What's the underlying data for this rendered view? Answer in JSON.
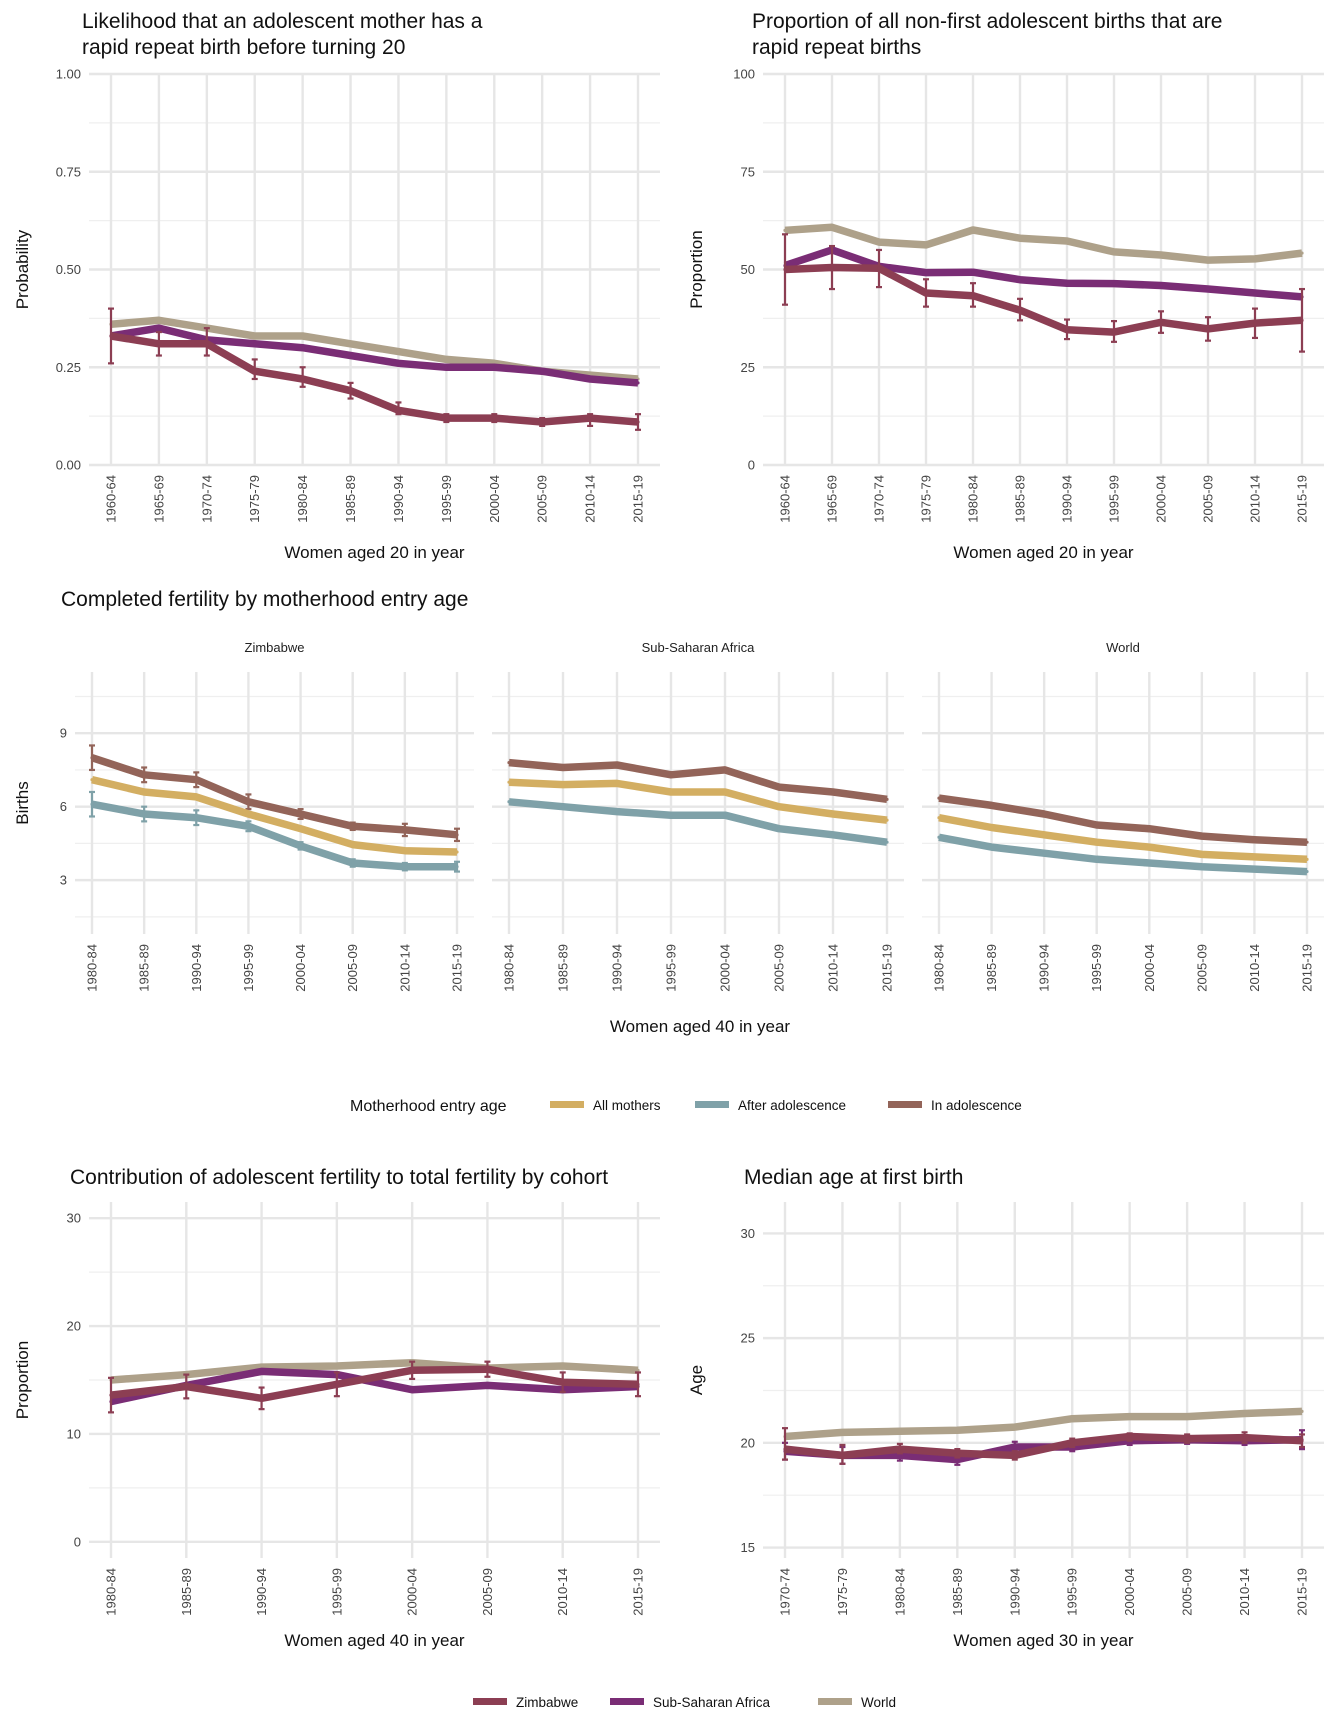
{
  "colors": {
    "zimbabwe": "#8c3e53",
    "ssa": "#7a2d75",
    "world": "#aea18a",
    "all_mothers": "#d3ae62",
    "after_adolescence": "#7fa1a8",
    "in_adolescence": "#936459"
  },
  "legend_fertility": {
    "title": "Motherhood entry age",
    "items": [
      {
        "key": "all_mothers",
        "label": "All mothers"
      },
      {
        "key": "after_adolescence",
        "label": "After adolescence"
      },
      {
        "key": "in_adolescence",
        "label": "In adolescence"
      }
    ]
  },
  "legend_region": {
    "items": [
      {
        "key": "zimbabwe",
        "label": "Zimbabwe"
      },
      {
        "key": "ssa",
        "label": "Sub-Saharan Africa"
      },
      {
        "key": "world",
        "label": "World"
      }
    ]
  },
  "chart_data": [
    {
      "id": "rapid_repeat_likelihood",
      "type": "line",
      "title": [
        "Likelihood that an adolescent mother has a",
        "rapid repeat birth before turning 20"
      ],
      "xlabel": "Women aged 20 in year",
      "ylabel": "Probability",
      "ylim": [
        0,
        1
      ],
      "yticks": [
        "0.00",
        "0.25",
        "0.50",
        "0.75",
        "1.00"
      ],
      "ytick_values": [
        0,
        0.25,
        0.5,
        0.75,
        1.0
      ],
      "categories": [
        "1960-64",
        "1965-69",
        "1970-74",
        "1975-79",
        "1980-84",
        "1985-89",
        "1990-94",
        "1995-99",
        "2000-04",
        "2005-09",
        "2010-14",
        "2015-19"
      ],
      "series": [
        {
          "name": "World",
          "key": "world",
          "values": [
            0.36,
            0.37,
            0.35,
            0.33,
            0.33,
            0.31,
            0.29,
            0.27,
            0.26,
            0.24,
            0.23,
            0.22
          ]
        },
        {
          "name": "Sub-Saharan Africa",
          "key": "ssa",
          "values": [
            0.33,
            0.35,
            0.32,
            0.31,
            0.3,
            0.28,
            0.26,
            0.25,
            0.25,
            0.24,
            0.22,
            0.21
          ]
        },
        {
          "name": "Zimbabwe",
          "key": "zimbabwe",
          "values": [
            0.33,
            0.31,
            0.31,
            0.24,
            0.22,
            0.19,
            0.14,
            0.12,
            0.12,
            0.11,
            0.12,
            0.11
          ],
          "errors": [
            [
              0.26,
              0.4
            ],
            [
              0.28,
              0.34
            ],
            [
              0.28,
              0.35
            ],
            [
              0.22,
              0.27
            ],
            [
              0.2,
              0.25
            ],
            [
              0.17,
              0.21
            ],
            [
              0.13,
              0.16
            ],
            [
              0.11,
              0.13
            ],
            [
              0.11,
              0.13
            ],
            [
              0.1,
              0.12
            ],
            [
              0.1,
              0.13
            ],
            [
              0.09,
              0.13
            ]
          ]
        }
      ]
    },
    {
      "id": "rapid_repeat_proportion",
      "type": "line",
      "title": [
        "Proportion of all non-first adolescent births that are",
        "rapid repeat births"
      ],
      "xlabel": "Women aged 20 in year",
      "ylabel": "Proportion",
      "ylim": [
        0,
        100
      ],
      "yticks": [
        "0",
        "25",
        "50",
        "75",
        "100"
      ],
      "ytick_values": [
        0,
        25,
        50,
        75,
        100
      ],
      "categories": [
        "1960-64",
        "1965-69",
        "1970-74",
        "1975-79",
        "1980-84",
        "1985-89",
        "1990-94",
        "1995-99",
        "2000-04",
        "2005-09",
        "2010-14",
        "2015-19"
      ],
      "series": [
        {
          "name": "World",
          "key": "world",
          "values": [
            60,
            60.8,
            57,
            56.3,
            60.1,
            58,
            57.3,
            54.5,
            53.7,
            52.4,
            52.7,
            54.2
          ]
        },
        {
          "name": "Sub-Saharan Africa",
          "key": "ssa",
          "values": [
            51,
            55,
            50.8,
            49.2,
            49.3,
            47.4,
            46.5,
            46.4,
            45.9,
            45,
            44,
            43
          ]
        },
        {
          "name": "Zimbabwe",
          "key": "zimbabwe",
          "values": [
            50,
            50.5,
            50.3,
            44,
            43.3,
            39.6,
            34.6,
            34,
            36.5,
            34.8,
            36.3,
            37
          ],
          "errors": [
            [
              41,
              59
            ],
            [
              45,
              56
            ],
            [
              45.5,
              55
            ],
            [
              40.5,
              47.5
            ],
            [
              40.5,
              46.5
            ],
            [
              37,
              42.5
            ],
            [
              32.2,
              37.2
            ],
            [
              31.5,
              36.8
            ],
            [
              33.8,
              39.3
            ],
            [
              31.8,
              37.8
            ],
            [
              32.5,
              40
            ],
            [
              29,
              45
            ]
          ]
        }
      ]
    },
    {
      "id": "completed_fertility",
      "type": "line",
      "title": [
        "Completed fertility by motherhood entry age"
      ],
      "xlabel": "Women aged 40 in year",
      "ylabel": "Births",
      "ylim": [
        0.8,
        11.5
      ],
      "yticks": [
        "3",
        "6",
        "9"
      ],
      "ytick_values": [
        3,
        6,
        9
      ],
      "categories": [
        "1980-84",
        "1985-89",
        "1990-94",
        "1995-99",
        "2000-04",
        "2005-09",
        "2010-14",
        "2015-19"
      ],
      "facets": [
        {
          "name": "Zimbabwe",
          "series": [
            {
              "name": "In adolescence",
              "key": "in_adolescence",
              "values": [
                8,
                7.3,
                7.1,
                6.2,
                5.7,
                5.2,
                5.05,
                4.85
              ],
              "errors": [
                [
                  7.5,
                  8.5
                ],
                [
                  7.0,
                  7.6
                ],
                [
                  6.8,
                  7.4
                ],
                [
                  5.9,
                  6.5
                ],
                [
                  5.5,
                  5.9
                ],
                [
                  5.05,
                  5.35
                ],
                [
                  4.8,
                  5.3
                ],
                [
                  4.6,
                  5.1
                ]
              ]
            },
            {
              "name": "All mothers",
              "key": "all_mothers",
              "values": [
                7.1,
                6.6,
                6.4,
                5.7,
                5.1,
                4.45,
                4.2,
                4.15
              ]
            },
            {
              "name": "After adolescence",
              "key": "after_adolescence",
              "values": [
                6.1,
                5.7,
                5.55,
                5.2,
                4.4,
                3.7,
                3.55,
                3.55
              ],
              "errors": [
                [
                  5.6,
                  6.6
                ],
                [
                  5.4,
                  6.0
                ],
                [
                  5.25,
                  5.85
                ],
                [
                  5.0,
                  5.4
                ],
                [
                  4.25,
                  4.55
                ],
                [
                  3.55,
                  3.85
                ],
                [
                  3.4,
                  3.7
                ],
                [
                  3.35,
                  3.75
                ]
              ]
            }
          ]
        },
        {
          "name": "Sub-Saharan Africa",
          "series": [
            {
              "name": "In adolescence",
              "key": "in_adolescence",
              "values": [
                7.8,
                7.6,
                7.7,
                7.3,
                7.5,
                6.8,
                6.6,
                6.3
              ]
            },
            {
              "name": "All mothers",
              "key": "all_mothers",
              "values": [
                7.0,
                6.9,
                6.95,
                6.6,
                6.6,
                6.0,
                5.7,
                5.45
              ]
            },
            {
              "name": "After adolescence",
              "key": "after_adolescence",
              "values": [
                6.2,
                6.0,
                5.8,
                5.65,
                5.65,
                5.1,
                4.85,
                4.55
              ]
            }
          ]
        },
        {
          "name": "World",
          "series": [
            {
              "name": "In adolescence",
              "key": "in_adolescence",
              "values": [
                6.35,
                6.05,
                5.7,
                5.25,
                5.1,
                4.8,
                4.65,
                4.55
              ]
            },
            {
              "name": "All mothers",
              "key": "all_mothers",
              "values": [
                5.55,
                5.15,
                4.85,
                4.55,
                4.35,
                4.05,
                3.95,
                3.85
              ]
            },
            {
              "name": "After adolescence",
              "key": "after_adolescence",
              "values": [
                4.75,
                4.35,
                4.1,
                3.85,
                3.7,
                3.55,
                3.45,
                3.35
              ]
            }
          ]
        }
      ]
    },
    {
      "id": "adolescent_contribution",
      "type": "line",
      "title": [
        "Contribution of adolescent fertility to total fertility by cohort"
      ],
      "xlabel": "Women aged 40 in year",
      "ylabel": "Proportion",
      "ylim": [
        -1.5,
        31.5
      ],
      "yticks": [
        "0",
        "10",
        "20",
        "30"
      ],
      "ytick_values": [
        0,
        10,
        20,
        30
      ],
      "categories": [
        "1980-84",
        "1985-89",
        "1990-94",
        "1995-99",
        "2000-04",
        "2005-09",
        "2010-14",
        "2015-19"
      ],
      "series": [
        {
          "name": "World",
          "key": "world",
          "values": [
            15.0,
            15.5,
            16.2,
            16.3,
            16.6,
            16.1,
            16.3,
            15.9
          ]
        },
        {
          "name": "Sub-Saharan Africa",
          "key": "ssa",
          "values": [
            13.0,
            14.5,
            15.8,
            15.5,
            14.1,
            14.5,
            14.1,
            14.4
          ]
        },
        {
          "name": "Zimbabwe",
          "key": "zimbabwe",
          "values": [
            13.6,
            14.4,
            13.3,
            14.6,
            15.9,
            16.0,
            14.8,
            14.6
          ],
          "errors": [
            [
              12.0,
              15.2
            ],
            [
              13.3,
              15.5
            ],
            [
              12.3,
              14.3
            ],
            [
              13.5,
              15.7
            ],
            [
              15.1,
              16.7
            ],
            [
              15.3,
              16.7
            ],
            [
              13.9,
              15.7
            ],
            [
              13.5,
              15.7
            ]
          ]
        }
      ]
    },
    {
      "id": "median_age_first_birth",
      "type": "line",
      "title": [
        "Median age at first birth"
      ],
      "xlabel": "Women aged 30 in year",
      "ylabel": "Age",
      "ylim": [
        14.5,
        31.5
      ],
      "yticks": [
        "15",
        "20",
        "25",
        "30"
      ],
      "ytick_values": [
        15,
        20,
        25,
        30
      ],
      "categories": [
        "1970-74",
        "1975-79",
        "1980-84",
        "1985-89",
        "1990-94",
        "1995-99",
        "2000-04",
        "2005-09",
        "2010-14",
        "2015-19"
      ],
      "series": [
        {
          "name": "World",
          "key": "world",
          "values": [
            20.3,
            20.5,
            20.55,
            20.6,
            20.75,
            21.15,
            21.25,
            21.25,
            21.4,
            21.5
          ]
        },
        {
          "name": "Sub-Saharan Africa",
          "key": "ssa",
          "values": [
            19.6,
            19.4,
            19.4,
            19.2,
            19.8,
            19.8,
            20.1,
            20.15,
            20.1,
            20.15
          ],
          "errors": [
            [
              19.2,
              20.0
            ],
            [
              19.0,
              19.8
            ],
            [
              19.15,
              19.65
            ],
            [
              18.95,
              19.45
            ],
            [
              19.55,
              20.05
            ],
            [
              19.6,
              20.0
            ],
            [
              19.9,
              20.3
            ],
            [
              19.95,
              20.35
            ],
            [
              19.9,
              20.3
            ],
            [
              19.7,
              20.6
            ]
          ]
        },
        {
          "name": "Zimbabwe",
          "key": "zimbabwe",
          "values": [
            19.7,
            19.4,
            19.7,
            19.5,
            19.4,
            20.0,
            20.3,
            20.2,
            20.25,
            20.1
          ],
          "errors": [
            [
              19.2,
              20.7
            ],
            [
              19.0,
              19.9
            ],
            [
              19.5,
              19.95
            ],
            [
              19.3,
              19.7
            ],
            [
              19.2,
              19.6
            ],
            [
              19.8,
              20.2
            ],
            [
              20.1,
              20.45
            ],
            [
              20.0,
              20.4
            ],
            [
              20.0,
              20.5
            ],
            [
              19.8,
              20.4
            ]
          ]
        }
      ]
    }
  ]
}
